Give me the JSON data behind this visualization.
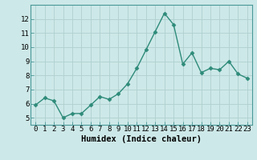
{
  "x": [
    0,
    1,
    2,
    3,
    4,
    5,
    6,
    7,
    8,
    9,
    10,
    11,
    12,
    13,
    14,
    15,
    16,
    17,
    18,
    19,
    20,
    21,
    22,
    23
  ],
  "y": [
    5.9,
    6.4,
    6.2,
    5.0,
    5.3,
    5.3,
    5.9,
    6.5,
    6.3,
    6.7,
    7.4,
    8.5,
    9.8,
    11.1,
    12.4,
    11.6,
    8.8,
    9.6,
    8.2,
    8.5,
    8.4,
    9.0,
    8.1,
    7.8
  ],
  "line_color": "#2e8b7a",
  "marker": "D",
  "marker_size": 2.5,
  "bg_color": "#cde8e8",
  "grid_color": "#b0cfcf",
  "xlabel": "Humidex (Indice chaleur)",
  "xlim": [
    -0.5,
    23.5
  ],
  "ylim": [
    4.5,
    13.0
  ],
  "yticks": [
    5,
    6,
    7,
    8,
    9,
    10,
    11,
    12
  ],
  "xticks": [
    0,
    1,
    2,
    3,
    4,
    5,
    6,
    7,
    8,
    9,
    10,
    11,
    12,
    13,
    14,
    15,
    16,
    17,
    18,
    19,
    20,
    21,
    22,
    23
  ],
  "xlabel_fontsize": 7.5,
  "tick_fontsize": 6.5,
  "line_width": 1.0
}
